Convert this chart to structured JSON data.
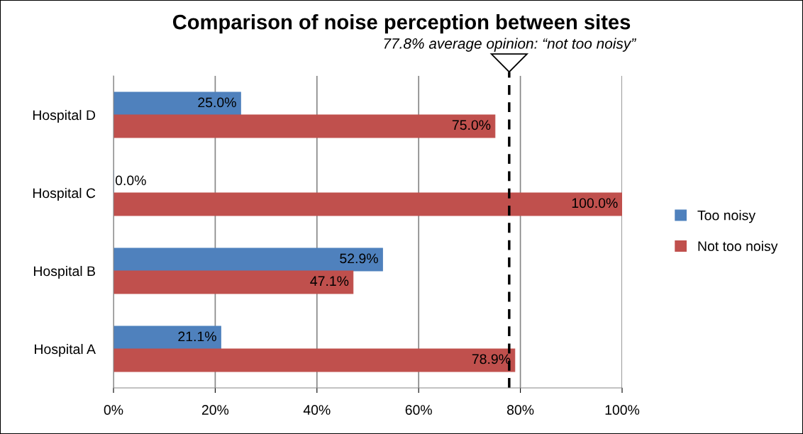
{
  "chart_data": {
    "type": "bar",
    "orientation": "horizontal",
    "title": "Comparison of noise perception between sites",
    "categories": [
      "Hospital D",
      "Hospital C",
      "Hospital B",
      "Hospital A"
    ],
    "series": [
      {
        "name": "Too noisy",
        "color": "#4f81bd",
        "values": [
          25.0,
          0.0,
          52.9,
          21.1
        ],
        "value_labels": [
          "25.0%",
          "0.0%",
          "52.9%",
          "21.1%"
        ]
      },
      {
        "name": "Not too noisy",
        "color": "#c0504d",
        "values": [
          75.0,
          100.0,
          47.1,
          78.9
        ],
        "value_labels": [
          "75.0%",
          "100.0%",
          "47.1%",
          "78.9%"
        ]
      }
    ],
    "xlim": [
      0,
      100
    ],
    "xticks": [
      {
        "value": 0,
        "label": "0%"
      },
      {
        "value": 20,
        "label": "20%"
      },
      {
        "value": 40,
        "label": "40%"
      },
      {
        "value": 60,
        "label": "60%"
      },
      {
        "value": 80,
        "label": "80%"
      },
      {
        "value": 100,
        "label": "100%"
      }
    ],
    "ref_lines": [
      {
        "axis": "x",
        "value": 77.8,
        "label": "77.8% average opinion: “not too noisy”",
        "line_style": "dashed",
        "color": "#000000"
      }
    ],
    "grid": "x",
    "legend": "right"
  }
}
